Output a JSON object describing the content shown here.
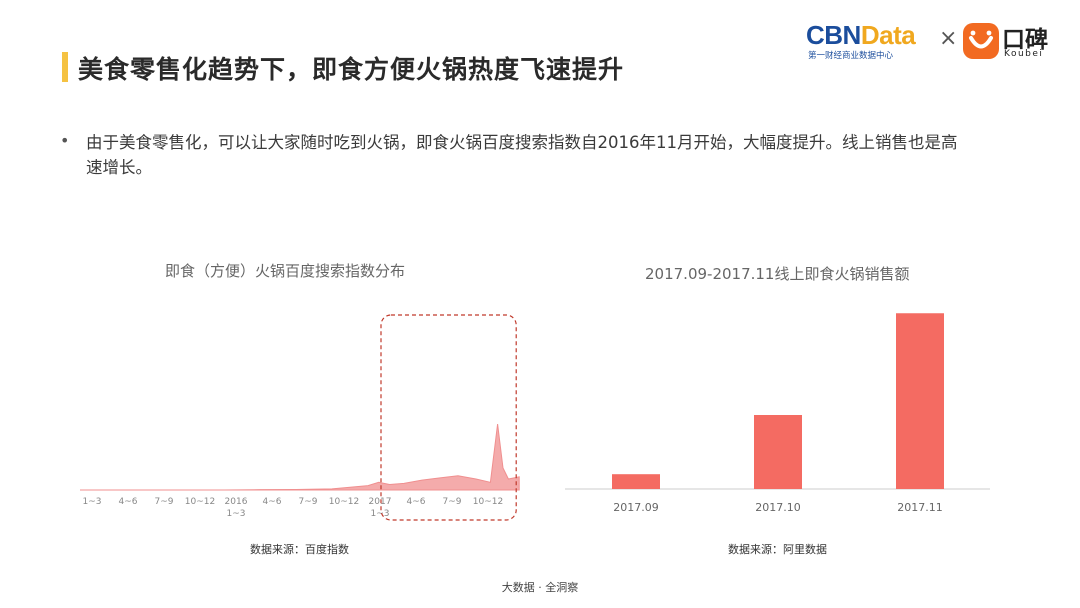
{
  "header": {
    "title": "美食零售化趋势下，即食方便火锅热度飞速提升",
    "accent_color": "#f5c242"
  },
  "logos": {
    "cbn_part1": "CBN",
    "cbn_part2": "Data",
    "cbn_sub": "第一财经商业数据中心",
    "times": "×",
    "koubei_text": "口碑",
    "koubei_sub": "Koubei",
    "koubei_icon": "koubei-smile-icon"
  },
  "bullet": {
    "symbol": "•",
    "text": "由于美食零售化，可以让大家随时吃到火锅，即食火锅百度搜索指数自2016年11月开始，大幅度提升。线上销售也是高速增长。"
  },
  "left_chart": {
    "title": "即食（方便）火锅百度搜索指数分布",
    "source": "数据来源：百度指数"
  },
  "right_chart": {
    "title": "2017.09-2017.11线上即食火锅销售额",
    "source": "数据来源：阿里数据"
  },
  "footer": "大数据 · 全洞察",
  "colors": {
    "bar": "#f46b62",
    "area": "#f08f8f",
    "highlight": "#c0392b"
  },
  "chart_data": [
    {
      "type": "area",
      "title": "即食（方便）火锅百度搜索指数分布",
      "tick_labels": [
        "1~3",
        "4~6",
        "7~9",
        "10~12",
        "2016\n1~3",
        "4~6",
        "7~9",
        "10~12",
        "2017\n1~3",
        "4~6",
        "7~9",
        "10~12"
      ],
      "x": [
        0,
        1,
        2,
        3,
        4,
        5,
        6,
        7,
        8,
        8.3,
        8.6,
        9,
        9.5,
        10,
        10.5,
        11,
        11.4,
        11.6,
        11.75,
        11.9,
        12.2
      ],
      "values": [
        0,
        0,
        0,
        0,
        0,
        0.3,
        0.5,
        1,
        4,
        7,
        5,
        6,
        9,
        11,
        13,
        10,
        7,
        60,
        20,
        10,
        12
      ],
      "ylim": [
        0,
        100
      ],
      "highlight_range": [
        "2017 1~3",
        "10~12"
      ]
    },
    {
      "type": "bar",
      "title": "2017.09-2017.11线上即食火锅销售额",
      "categories": [
        "2017.09",
        "2017.10",
        "2017.11"
      ],
      "values": [
        8,
        40,
        95
      ],
      "ylim": [
        0,
        100
      ]
    }
  ]
}
